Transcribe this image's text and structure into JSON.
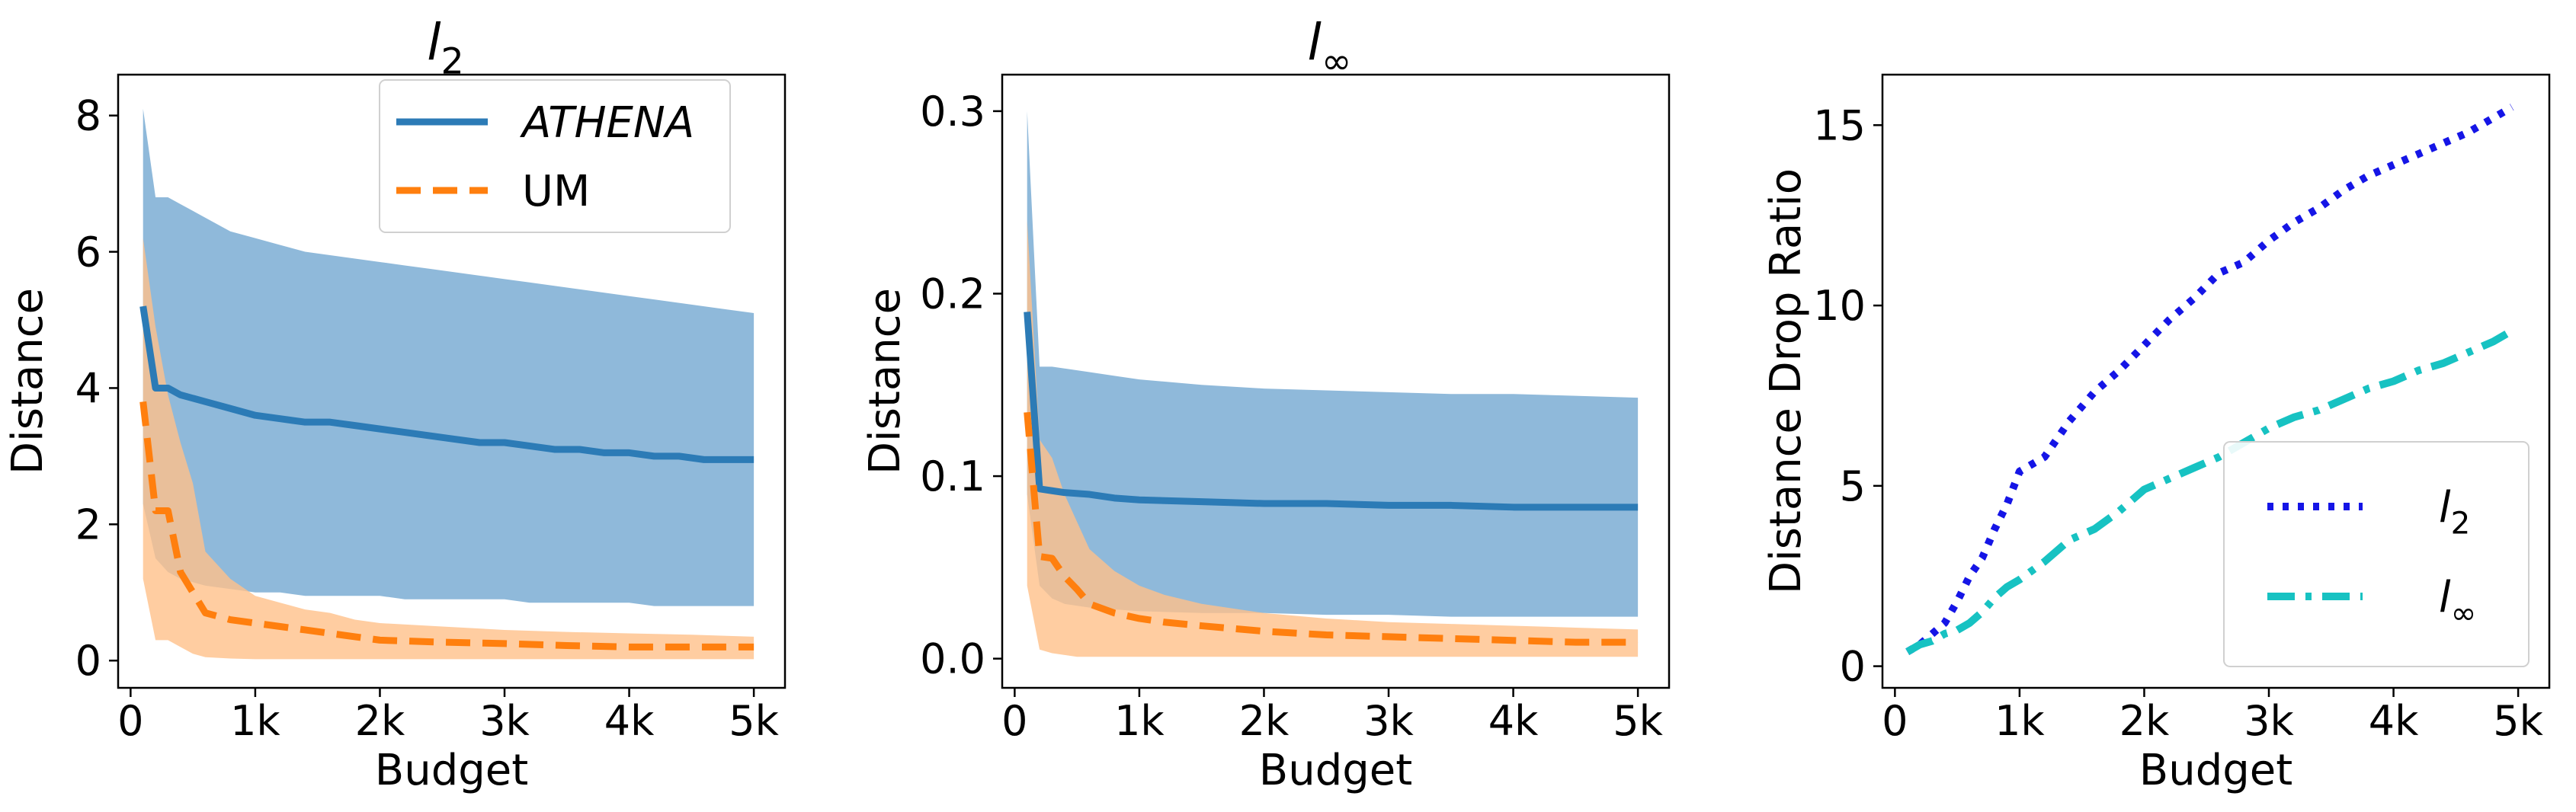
{
  "colors": {
    "athena": "#2c7bb6",
    "athena_band": "#8fb9da",
    "um": "#ff7f0e",
    "um_band": "#ffc08a",
    "l2_ratio": "#1515e6",
    "linf_ratio": "#17c2c2",
    "axis": "#000000"
  },
  "chart_data": [
    {
      "type": "line",
      "title": "l2",
      "title_main": "l",
      "title_sub": "2",
      "xlabel": "Budget",
      "ylabel": "Distance",
      "xlim": [
        -100,
        5250
      ],
      "ylim": [
        -0.4,
        8.6
      ],
      "x_ticks": [
        0,
        1000,
        2000,
        3000,
        4000,
        5000
      ],
      "x_tick_labels": [
        "0",
        "1k",
        "2k",
        "3k",
        "4k",
        "5k"
      ],
      "y_ticks": [
        0,
        2,
        4,
        6,
        8
      ],
      "y_tick_labels": [
        "0",
        "2",
        "4",
        "6",
        "8"
      ],
      "legend": {
        "position": "top-right",
        "entries": [
          "ATHENA",
          "UM"
        ]
      },
      "series": [
        {
          "name": "ATHENA",
          "style": "solid",
          "x": [
            100,
            200,
            300,
            400,
            600,
            800,
            1000,
            1200,
            1400,
            1600,
            1800,
            2000,
            2200,
            2400,
            2600,
            2800,
            3000,
            3200,
            3400,
            3600,
            3800,
            4000,
            4200,
            4400,
            4600,
            4800,
            5000
          ],
          "y": [
            5.2,
            4.0,
            4.0,
            3.9,
            3.8,
            3.7,
            3.6,
            3.55,
            3.5,
            3.5,
            3.45,
            3.4,
            3.35,
            3.3,
            3.25,
            3.2,
            3.2,
            3.15,
            3.1,
            3.1,
            3.05,
            3.05,
            3.0,
            3.0,
            2.95,
            2.95,
            2.95
          ],
          "upper": [
            8.1,
            6.8,
            6.8,
            6.7,
            6.5,
            6.3,
            6.2,
            6.1,
            6.0,
            5.95,
            5.9,
            5.85,
            5.8,
            5.75,
            5.7,
            5.65,
            5.6,
            5.55,
            5.5,
            5.45,
            5.4,
            5.35,
            5.3,
            5.25,
            5.2,
            5.15,
            5.1
          ],
          "lower": [
            2.3,
            1.5,
            1.3,
            1.2,
            1.1,
            1.05,
            1.0,
            1.0,
            0.95,
            0.95,
            0.95,
            0.95,
            0.9,
            0.9,
            0.9,
            0.9,
            0.9,
            0.85,
            0.85,
            0.85,
            0.85,
            0.85,
            0.8,
            0.8,
            0.8,
            0.8,
            0.8
          ]
        },
        {
          "name": "UM",
          "style": "dashed",
          "x": [
            100,
            200,
            300,
            400,
            500,
            600,
            800,
            1000,
            1200,
            1400,
            1600,
            1800,
            2000,
            2500,
            3000,
            3500,
            4000,
            4500,
            5000
          ],
          "y": [
            3.8,
            2.2,
            2.2,
            1.3,
            1.0,
            0.7,
            0.6,
            0.55,
            0.5,
            0.45,
            0.4,
            0.35,
            0.3,
            0.27,
            0.25,
            0.22,
            0.2,
            0.2,
            0.2
          ],
          "upper": [
            6.2,
            4.9,
            3.9,
            3.2,
            2.6,
            1.6,
            1.2,
            0.95,
            0.85,
            0.75,
            0.7,
            0.6,
            0.55,
            0.5,
            0.45,
            0.42,
            0.4,
            0.38,
            0.35
          ],
          "lower": [
            1.2,
            0.3,
            0.3,
            0.2,
            0.1,
            0.05,
            0.03,
            0.02,
            0.02,
            0.02,
            0.02,
            0.02,
            0.02,
            0.02,
            0.02,
            0.02,
            0.02,
            0.02,
            0.02
          ]
        }
      ]
    },
    {
      "type": "line",
      "title": "l∞",
      "title_main": "l",
      "title_sub": "∞",
      "xlabel": "Budget",
      "ylabel": "Distance",
      "xlim": [
        -100,
        5250
      ],
      "ylim": [
        -0.016,
        0.32
      ],
      "x_ticks": [
        0,
        1000,
        2000,
        3000,
        4000,
        5000
      ],
      "x_tick_labels": [
        "0",
        "1k",
        "2k",
        "3k",
        "4k",
        "5k"
      ],
      "y_ticks": [
        0.0,
        0.1,
        0.2,
        0.3
      ],
      "y_tick_labels": [
        "0.0",
        "0.1",
        "0.2",
        "0.3"
      ],
      "series": [
        {
          "name": "ATHENA",
          "style": "solid",
          "x": [
            100,
            200,
            300,
            400,
            600,
            800,
            1000,
            1500,
            2000,
            2500,
            3000,
            3500,
            4000,
            4500,
            5000
          ],
          "y": [
            0.19,
            0.093,
            0.092,
            0.091,
            0.09,
            0.088,
            0.087,
            0.086,
            0.085,
            0.085,
            0.084,
            0.084,
            0.083,
            0.083,
            0.083
          ],
          "upper": [
            0.3,
            0.16,
            0.16,
            0.159,
            0.157,
            0.155,
            0.153,
            0.15,
            0.148,
            0.147,
            0.146,
            0.145,
            0.145,
            0.144,
            0.143
          ],
          "lower": [
            0.09,
            0.04,
            0.033,
            0.03,
            0.028,
            0.027,
            0.026,
            0.025,
            0.025,
            0.024,
            0.024,
            0.023,
            0.023,
            0.023,
            0.023
          ]
        },
        {
          "name": "UM",
          "style": "dashed",
          "x": [
            100,
            200,
            300,
            400,
            500,
            600,
            800,
            1000,
            1200,
            1500,
            2000,
            2500,
            3000,
            3500,
            4000,
            4500,
            5000
          ],
          "y": [
            0.135,
            0.056,
            0.055,
            0.045,
            0.038,
            0.03,
            0.025,
            0.022,
            0.02,
            0.018,
            0.015,
            0.013,
            0.012,
            0.011,
            0.01,
            0.009,
            0.009
          ],
          "upper": [
            0.24,
            0.12,
            0.11,
            0.09,
            0.075,
            0.06,
            0.048,
            0.04,
            0.035,
            0.03,
            0.025,
            0.022,
            0.02,
            0.019,
            0.018,
            0.017,
            0.016
          ],
          "lower": [
            0.04,
            0.005,
            0.003,
            0.002,
            0.001,
            0.001,
            0.001,
            0.001,
            0.001,
            0.001,
            0.001,
            0.001,
            0.001,
            0.001,
            0.001,
            0.001,
            0.001
          ]
        }
      ]
    },
    {
      "type": "line",
      "title": "",
      "xlabel": "Budget",
      "ylabel": "Distance Drop Ratio",
      "xlim": [
        -100,
        5250
      ],
      "ylim": [
        -0.6,
        16.4
      ],
      "x_ticks": [
        0,
        1000,
        2000,
        3000,
        4000,
        5000
      ],
      "x_tick_labels": [
        "0",
        "1k",
        "2k",
        "3k",
        "4k",
        "5k"
      ],
      "y_ticks": [
        0,
        5,
        10,
        15
      ],
      "y_tick_labels": [
        "0",
        "5",
        "10",
        "15"
      ],
      "legend": {
        "position": "lower-right",
        "entries": [
          "l2",
          "l∞"
        ]
      },
      "series": [
        {
          "name": "l2",
          "label_main": "l",
          "label_sub": "2",
          "style": "dotted",
          "x": [
            100,
            200,
            300,
            400,
            500,
            600,
            700,
            800,
            900,
            1000,
            1200,
            1400,
            1600,
            1800,
            2000,
            2200,
            2400,
            2600,
            2800,
            3000,
            3200,
            3400,
            3600,
            3800,
            4000,
            4200,
            4400,
            4600,
            4800,
            4950
          ],
          "y": [
            0.4,
            0.6,
            0.9,
            1.2,
            1.8,
            2.5,
            3.0,
            3.8,
            4.5,
            5.4,
            5.8,
            6.8,
            7.6,
            8.2,
            8.9,
            9.6,
            10.2,
            10.9,
            11.2,
            11.8,
            12.3,
            12.7,
            13.2,
            13.6,
            13.9,
            14.2,
            14.5,
            14.8,
            15.2,
            15.5
          ]
        },
        {
          "name": "l∞",
          "label_main": "l",
          "label_sub": "∞",
          "style": "dashdot",
          "x": [
            100,
            200,
            300,
            400,
            500,
            600,
            700,
            800,
            900,
            1000,
            1200,
            1400,
            1600,
            1800,
            2000,
            2200,
            2400,
            2600,
            2800,
            3000,
            3200,
            3400,
            3600,
            3800,
            4000,
            4200,
            4400,
            4600,
            4800,
            4950
          ],
          "y": [
            0.4,
            0.6,
            0.7,
            0.9,
            1.0,
            1.2,
            1.5,
            1.9,
            2.2,
            2.4,
            2.9,
            3.5,
            3.8,
            4.3,
            4.9,
            5.2,
            5.5,
            5.8,
            6.2,
            6.6,
            6.9,
            7.1,
            7.4,
            7.7,
            7.9,
            8.2,
            8.4,
            8.7,
            9.0,
            9.3
          ]
        }
      ]
    }
  ]
}
